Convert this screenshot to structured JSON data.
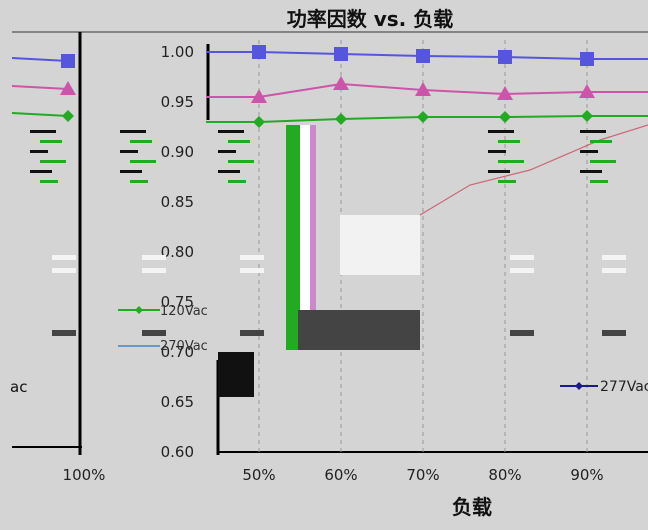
{
  "chart_data": [
    {
      "type": "line",
      "title": "功率因数 vs. 负载",
      "xlabel": "负载",
      "ylabel": "",
      "x": [
        "50%",
        "60%",
        "70%",
        "80%",
        "90%"
      ],
      "ylim": [
        0.6,
        1.0
      ],
      "y_ticks": [
        "1.00",
        "0.95",
        "0.90",
        "0.85",
        "0.80",
        "0.75",
        "0.70",
        "0.65",
        "0.60"
      ],
      "grid": "vertical-dashed",
      "series": [
        {
          "name": "",
          "color": "#5555dd",
          "marker": "square",
          "values": [
            1.0,
            0.998,
            0.996,
            0.995,
            0.993
          ]
        },
        {
          "name": "",
          "color": "#cc55aa",
          "marker": "triangle",
          "values": [
            0.955,
            0.968,
            0.962,
            0.958,
            0.96
          ]
        },
        {
          "name": "120Vac",
          "color": "#22aa22",
          "marker": "diamond",
          "values": [
            0.93,
            0.933,
            0.935,
            0.935,
            0.936
          ]
        },
        {
          "name": "270Vac",
          "color": "#6699cc",
          "marker": "none",
          "values": [
            null,
            null,
            null,
            null,
            null
          ]
        },
        {
          "name": "277Vac",
          "color": "#1a1a88",
          "marker": "diamond",
          "values": [
            null,
            null,
            null,
            null,
            null
          ]
        }
      ]
    },
    {
      "type": "line",
      "title": "",
      "x": [
        "100%"
      ],
      "series": [
        {
          "name": "",
          "color": "#5555dd",
          "marker": "square",
          "values": [
            0.991
          ]
        },
        {
          "name": "",
          "color": "#cc55aa",
          "marker": "triangle",
          "values": [
            0.963
          ]
        },
        {
          "name": "",
          "color": "#22aa22",
          "marker": "diamond",
          "values": [
            0.936
          ]
        }
      ]
    }
  ],
  "partial_legend_text": "ac"
}
